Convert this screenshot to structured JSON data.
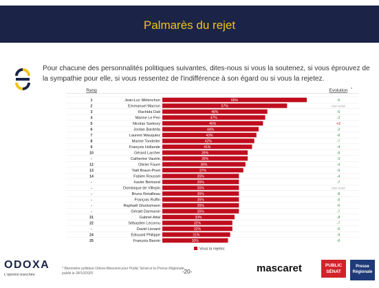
{
  "page": {
    "title": "Palmarès du rejet",
    "question": "Pour chacune des personnalités politiques suivantes, dites-nous si vous la soutenez, si vous éprouvez de la sympathie pour elle, si vous ressentez de l'indifférence à son égard ou si vous la rejetez.",
    "page_number": "-20-",
    "footnote": "* Baromètre politique Odoxa-Mascaret pour Public Sénat et la Presse Régionale, publié le 28/10/2025",
    "footer": {
      "odoxa": "ODOXA",
      "odoxa_tagline": "L'opinion tranchée",
      "mascaret": "mascaret",
      "public_senat": "PUBLIC SÉNAT",
      "presse_regionale": "Presse Régionale"
    }
  },
  "colors": {
    "banner": "#1b2447",
    "title": "#f2c418",
    "bar": "#c00d1e",
    "evolution_negative": "#3a8a4a",
    "evolution_positive": "#c00d1e",
    "not_tested": "#9aa0a6"
  },
  "chart_data": {
    "type": "bar",
    "orientation": "horizontal",
    "rank_header": "Rang",
    "evolution_header": "Evolution",
    "evolution_header_mark": "*",
    "legend": "Vous la rejetez",
    "xlim": [
      0,
      66
    ],
    "rows": [
      {
        "rank": "1",
        "name": "Jean-Luc Mélenchon",
        "value": 66,
        "label": "66%",
        "evolution": "-5"
      },
      {
        "rank": "2",
        "name": "Emmanuel Macron",
        "value": 57,
        "label": "57%",
        "evolution": "Non testé"
      },
      {
        "rank": "3",
        "name": "Rachida Dati",
        "value": 48,
        "label": "48%",
        "evolution": "-6"
      },
      {
        "rank": "4",
        "name": "Marine Le Pen",
        "value": 47,
        "label": "47%",
        "evolution": "-2"
      },
      {
        "rank": "5",
        "name": "Nicolas Sarkozy",
        "value": 46,
        "label": "46%",
        "evolution": "+2"
      },
      {
        "rank": "6",
        "name": "Jordan Bardella",
        "value": 44,
        "label": "44%",
        "evolution": "-3"
      },
      {
        "rank": "7",
        "name": "Laurent Wauquiez",
        "value": 43,
        "label": "43%",
        "evolution": "-8"
      },
      {
        "rank": "8",
        "name": "Marine Tondelier",
        "value": 42,
        "label": "42%",
        "evolution": "-7"
      },
      {
        "rank": "9",
        "name": "François Hollande",
        "value": 41,
        "label": "41%",
        "evolution": "-4"
      },
      {
        "rank": "10",
        "name": "Gérard Larcher",
        "value": 39,
        "label": "39%",
        "evolution": "-6"
      },
      {
        "rank": "-",
        "name": "Catherine Vautrin",
        "value": 39,
        "label": "39%",
        "evolution": "-3"
      },
      {
        "rank": "12",
        "name": "Olivier Faure",
        "value": 38,
        "label": "38%",
        "evolution": "-4"
      },
      {
        "rank": "13",
        "name": "Yaël Braun-Pivet",
        "value": 37,
        "label": "37%",
        "evolution": "-6"
      },
      {
        "rank": "14",
        "name": "Fabien Roussel",
        "value": 35,
        "label": "35%",
        "evolution": "-4"
      },
      {
        "rank": "-",
        "name": "Xavier Bertrand",
        "value": 35,
        "label": "35%",
        "evolution": "-7"
      },
      {
        "rank": "-",
        "name": "Dominique de Villepin",
        "value": 35,
        "label": "35%",
        "evolution": "Non testé"
      },
      {
        "rank": "-",
        "name": "Bruno Retailleau",
        "value": 35,
        "label": "35%",
        "evolution": "-8"
      },
      {
        "rank": "-",
        "name": "François Ruffin",
        "value": 35,
        "label": "35%",
        "evolution": "-6"
      },
      {
        "rank": "-",
        "name": "Raphaël Glucksmann",
        "value": 35,
        "label": "35%",
        "evolution": "-6"
      },
      {
        "rank": "-",
        "name": "Gérald Darmanin",
        "value": 35,
        "label": "35%",
        "evolution": "-7"
      },
      {
        "rank": "21",
        "name": "Gabriel Attal",
        "value": 33,
        "label": "33%",
        "evolution": "-8"
      },
      {
        "rank": "22",
        "name": "Sébastien Lecornu",
        "value": 32,
        "label": "32%",
        "evolution": "-7"
      },
      {
        "rank": "-",
        "name": "David Lisnard",
        "value": 32,
        "label": "32%",
        "evolution": "-6"
      },
      {
        "rank": "24",
        "name": "Edouard Philippe",
        "value": 31,
        "label": "31%",
        "evolution": "-9"
      },
      {
        "rank": "25",
        "name": "François Baroin",
        "value": 30,
        "label": "30%",
        "evolution": "-6"
      }
    ]
  }
}
